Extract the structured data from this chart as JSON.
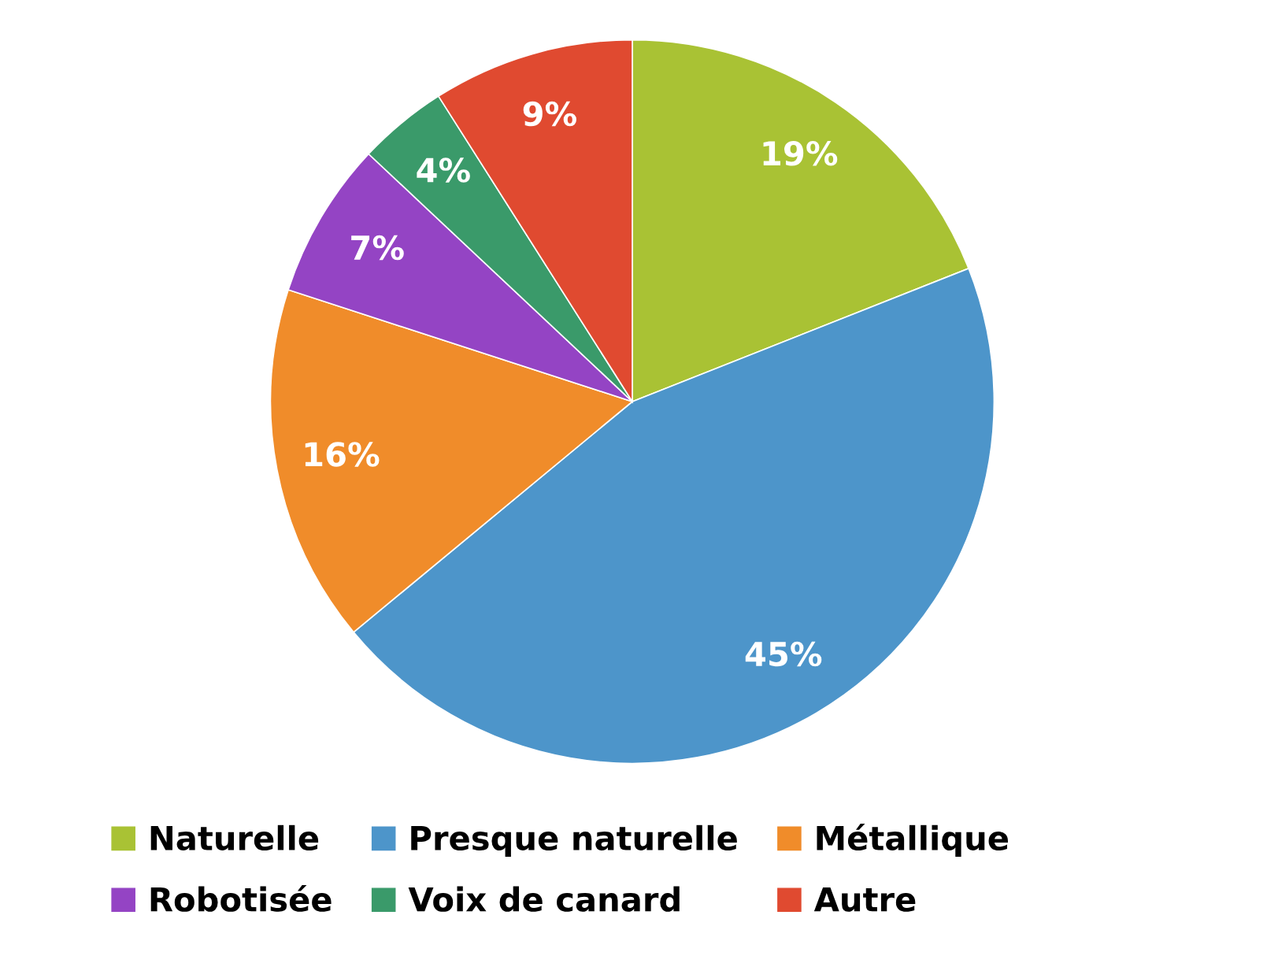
{
  "chart_data": {
    "type": "pie",
    "categories": [
      "Naturelle",
      "Presque naturelle",
      "Métallique",
      "Robotisée",
      "Voix de canard",
      "Autre"
    ],
    "values": [
      19,
      45,
      16,
      7,
      4,
      9
    ],
    "colors": [
      "#a9c234",
      "#4d95ca",
      "#f08c2a",
      "#9444c4",
      "#3a9a6a",
      "#e04a30"
    ],
    "value_labels": [
      "19%",
      "45%",
      "16%",
      "7%",
      "4%",
      "9%"
    ],
    "legend": "bottom"
  }
}
